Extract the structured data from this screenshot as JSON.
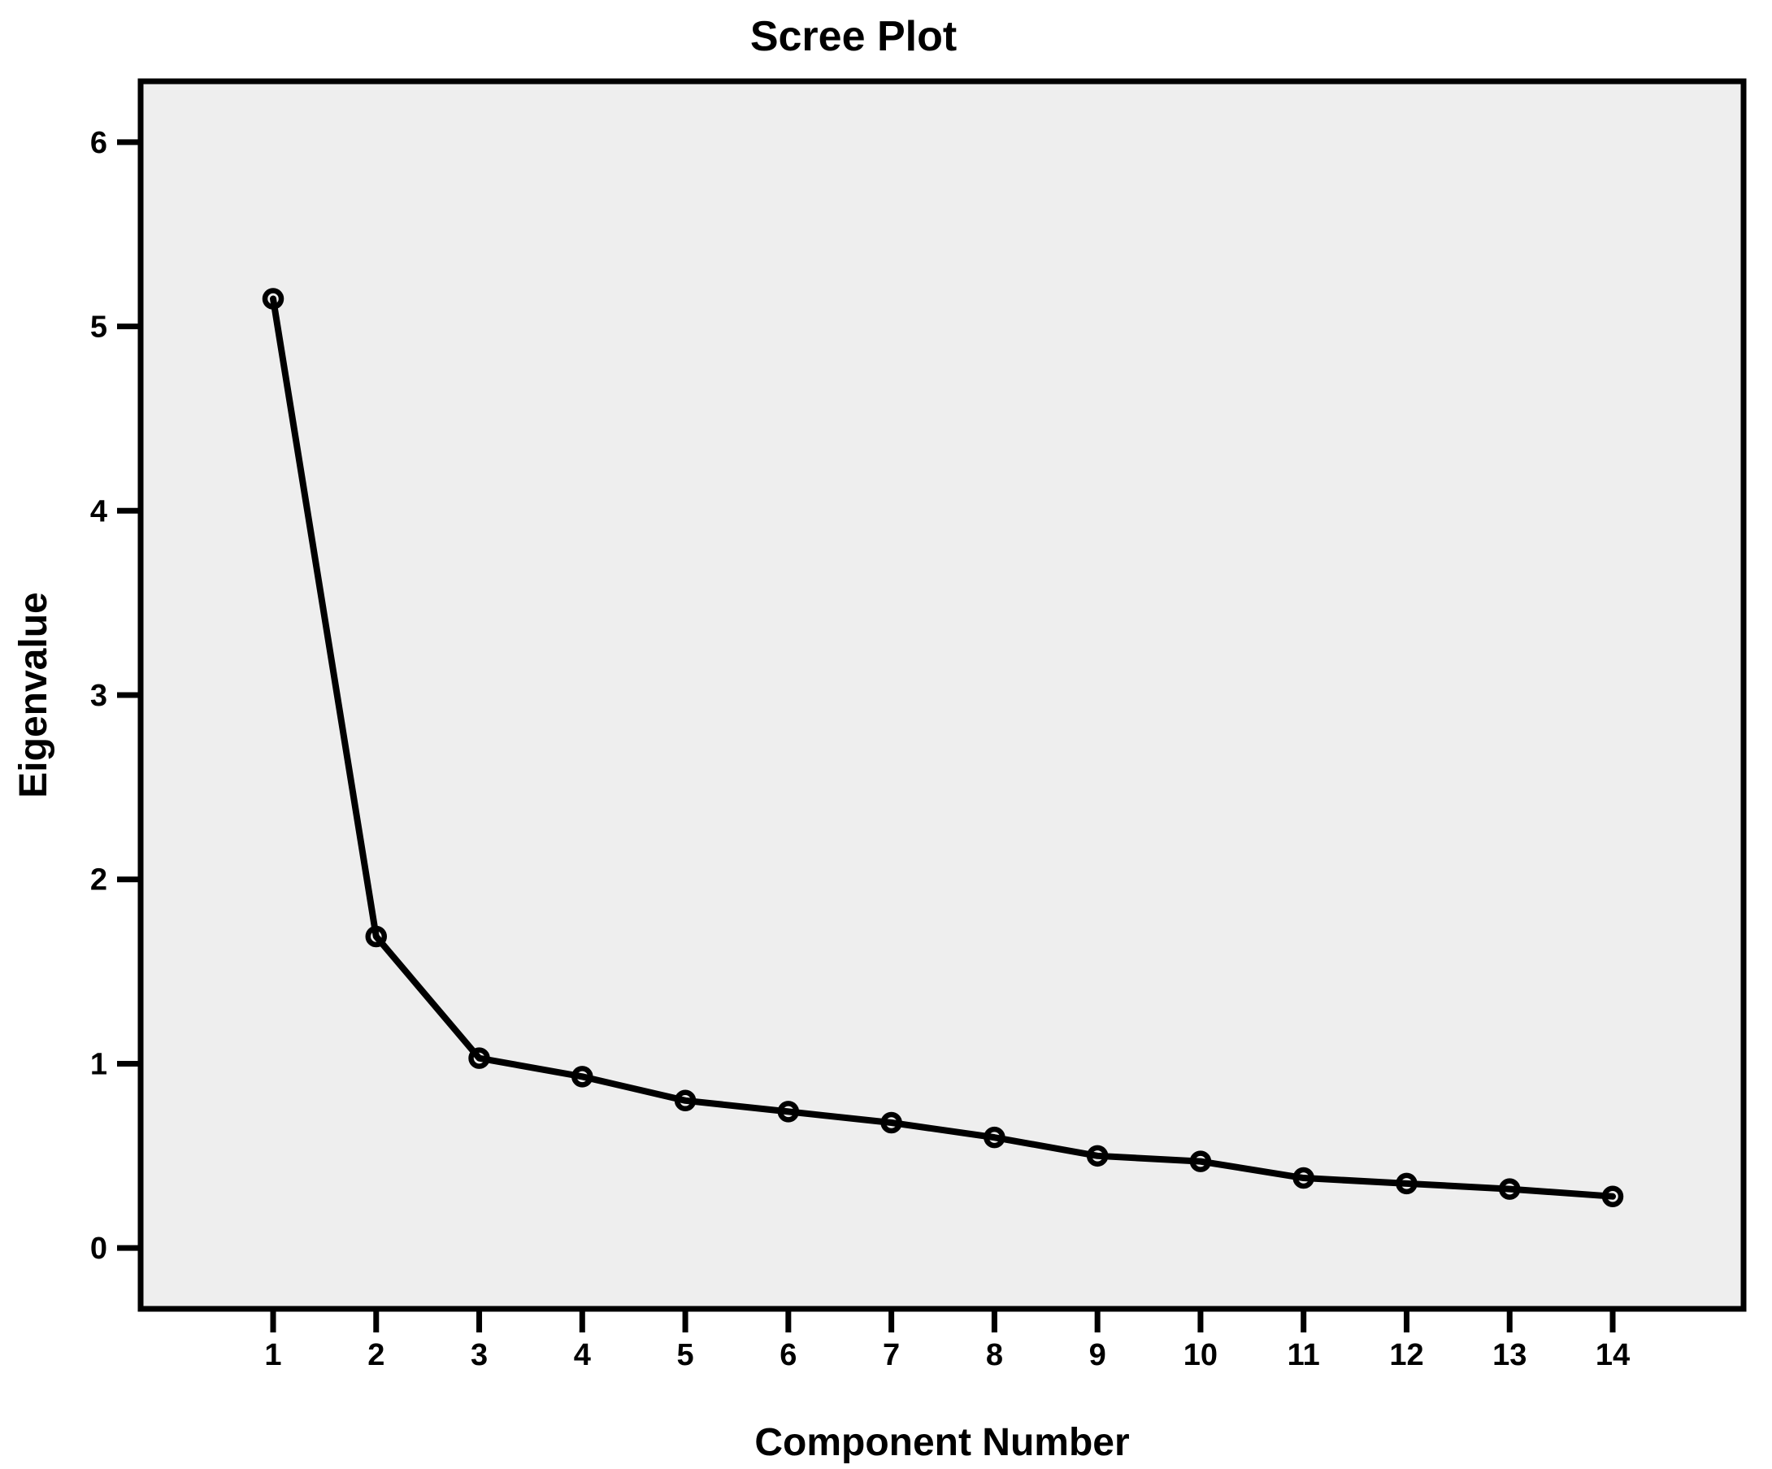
{
  "figure": {
    "title": "Scree Plot",
    "x_axis_label": "Component Number",
    "y_axis_label": "Eigenvalue"
  },
  "chart_data": {
    "type": "line",
    "title": "Scree Plot",
    "xlabel": "Component Number",
    "ylabel": "Eigenvalue",
    "categories": [
      "1",
      "2",
      "3",
      "4",
      "5",
      "6",
      "7",
      "8",
      "9",
      "10",
      "11",
      "12",
      "13",
      "14"
    ],
    "series": [
      {
        "name": "Eigenvalue",
        "values": [
          5.15,
          1.69,
          1.03,
          0.93,
          0.8,
          0.74,
          0.68,
          0.6,
          0.5,
          0.47,
          0.38,
          0.35,
          0.32,
          0.28
        ]
      }
    ],
    "yticks": [
      0,
      1,
      2,
      3,
      4,
      5,
      6
    ],
    "ylim": [
      -0.33,
      6.33
    ],
    "grid": false,
    "legend_position": "none",
    "marker": "open-circle",
    "line_color": "#000000",
    "marker_color": "#000000",
    "plot_bg_color": "#eeeeee",
    "frame_color": "#000000",
    "text_color": "#000000"
  }
}
